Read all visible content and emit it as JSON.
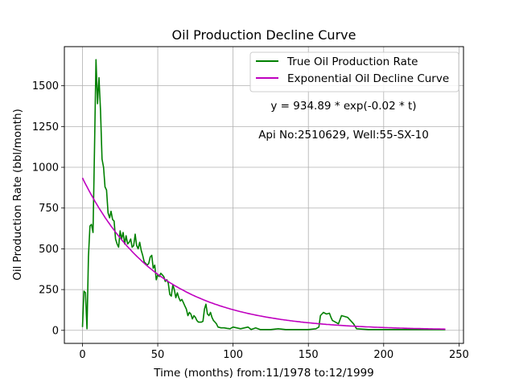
{
  "chart_data": {
    "type": "line",
    "title": "Oil Production Decline Curve",
    "xlabel": "Time (months) from:11/1978 to:12/1999",
    "ylabel": "Oil Production Rate (bbl/month)",
    "xlim": [
      -12,
      253
    ],
    "ylim": [
      -80,
      1740
    ],
    "xticks": [
      0,
      50,
      100,
      150,
      200,
      250
    ],
    "yticks": [
      0,
      250,
      500,
      750,
      1000,
      1250,
      1500
    ],
    "grid": true,
    "legend_position": "top-right",
    "annotations": [
      "y = 934.89 * exp(-0.02 * t)",
      "Api No:2510629, Well:55-SX-10"
    ],
    "series": [
      {
        "name": "True Oil Production Rate",
        "color": "#008000",
        "x": [
          0,
          1,
          2,
          3,
          4,
          5,
          6,
          7,
          8,
          9,
          10,
          11,
          12,
          13,
          14,
          15,
          16,
          17,
          18,
          19,
          20,
          21,
          22,
          23,
          24,
          25,
          26,
          27,
          28,
          29,
          30,
          31,
          32,
          33,
          34,
          35,
          36,
          37,
          38,
          39,
          40,
          41,
          42,
          43,
          44,
          45,
          46,
          47,
          48,
          49,
          50,
          51,
          52,
          53,
          54,
          55,
          56,
          57,
          58,
          59,
          60,
          61,
          62,
          63,
          64,
          65,
          66,
          67,
          68,
          69,
          70,
          71,
          72,
          73,
          74,
          75,
          76,
          77,
          78,
          79,
          80,
          81,
          82,
          83,
          84,
          85,
          86,
          87,
          88,
          89,
          90,
          92,
          94,
          96,
          98,
          100,
          105,
          110,
          112,
          115,
          118,
          120,
          125,
          130,
          135,
          140,
          145,
          150,
          155,
          157,
          158,
          160,
          162,
          164,
          165,
          166,
          168,
          170,
          172,
          174,
          176,
          178,
          180,
          182,
          190,
          200,
          210,
          220,
          230,
          241
        ],
        "y": [
          20,
          240,
          230,
          10,
          450,
          640,
          650,
          600,
          1100,
          1660,
          1390,
          1550,
          1350,
          1050,
          1000,
          880,
          860,
          720,
          690,
          730,
          680,
          670,
          560,
          530,
          510,
          610,
          560,
          600,
          530,
          580,
          530,
          540,
          560,
          510,
          520,
          590,
          520,
          500,
          540,
          490,
          460,
          420,
          410,
          400,
          410,
          450,
          460,
          380,
          400,
          310,
          340,
          330,
          350,
          340,
          330,
          300,
          310,
          290,
          220,
          210,
          280,
          250,
          200,
          230,
          200,
          180,
          190,
          170,
          150,
          130,
          90,
          110,
          100,
          70,
          90,
          80,
          60,
          50,
          50,
          50,
          55,
          130,
          160,
          100,
          90,
          110,
          80,
          60,
          50,
          40,
          20,
          15,
          15,
          12,
          10,
          20,
          10,
          20,
          5,
          15,
          5,
          5,
          5,
          10,
          5,
          5,
          5,
          5,
          10,
          20,
          90,
          110,
          100,
          105,
          80,
          60,
          50,
          40,
          90,
          85,
          80,
          60,
          40,
          10,
          5,
          5,
          5,
          5,
          5,
          5
        ]
      },
      {
        "name": "Exponential Oil Decline Curve",
        "color": "#bf00bf",
        "formula": {
          "a": 934.89,
          "b": 0.02,
          "x_start": 0,
          "x_end": 241
        }
      }
    ]
  }
}
